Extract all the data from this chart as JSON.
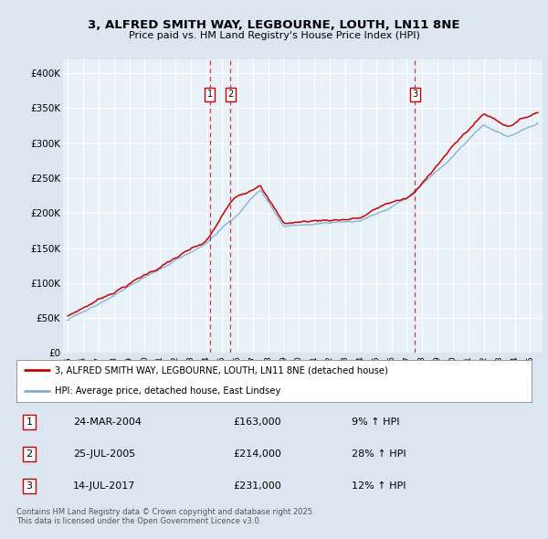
{
  "title": "3, ALFRED SMITH WAY, LEGBOURNE, LOUTH, LN11 8NE",
  "subtitle": "Price paid vs. HM Land Registry's House Price Index (HPI)",
  "bg_color": "#dce6f0",
  "plot_bg_color": "#e8f0f8",
  "legend_line1": "3, ALFRED SMITH WAY, LEGBOURNE, LOUTH, LN11 8NE (detached house)",
  "legend_line2": "HPI: Average price, detached house, East Lindsey",
  "transactions": [
    {
      "num": 1,
      "date": "24-MAR-2004",
      "price": 163000,
      "hpi_pct": "9%",
      "direction": "↑",
      "x_year": 2004.22
    },
    {
      "num": 2,
      "date": "25-JUL-2005",
      "price": 214000,
      "hpi_pct": "28%",
      "direction": "↑",
      "x_year": 2005.56
    },
    {
      "num": 3,
      "date": "14-JUL-2017",
      "price": 231000,
      "hpi_pct": "12%",
      "direction": "↑",
      "x_year": 2017.53
    }
  ],
  "red_color": "#cc0000",
  "blue_color": "#7bafd4",
  "footer": "Contains HM Land Registry data © Crown copyright and database right 2025.\nThis data is licensed under the Open Government Licence v3.0.",
  "yticks": [
    0,
    50000,
    100000,
    150000,
    200000,
    250000,
    300000,
    350000,
    400000
  ],
  "ylabels": [
    "£0",
    "£50K",
    "£100K",
    "£150K",
    "£200K",
    "£250K",
    "£300K",
    "£350K",
    "£400K"
  ],
  "xmin": 1994.7,
  "xmax": 2025.8,
  "ymin": 0,
  "ymax": 420000
}
